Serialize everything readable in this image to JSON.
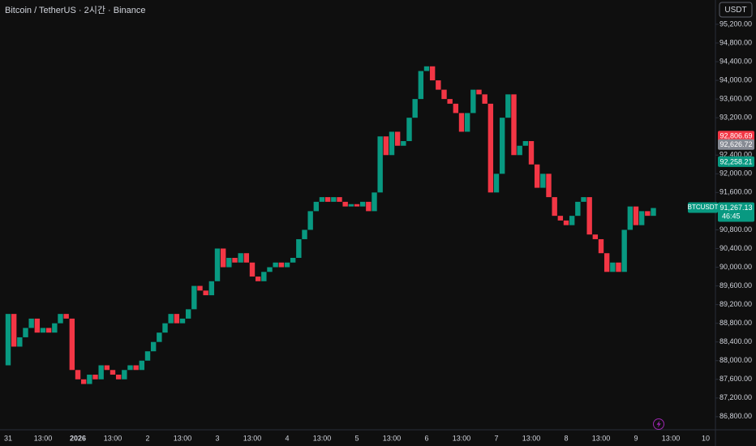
{
  "chart_data": {
    "type": "candlestick",
    "title": "Bitcoin / TetherUS · 2시간 · Binance",
    "currency_button": "USDT",
    "symbol": "BTCUSDT",
    "countdown": "46:45",
    "last_price_label": "91,267.13",
    "up_color": "#089981",
    "down_color": "#f23645",
    "grid": false,
    "categories": [
      "31",
      null,
      null,
      null,
      null,
      null,
      "13:00",
      null,
      null,
      null,
      null,
      null,
      "2026",
      null,
      null,
      null,
      null,
      null,
      "13:00",
      null,
      null,
      null,
      null,
      null,
      "2",
      null,
      null,
      null,
      null,
      null,
      "13:00",
      null,
      null,
      null,
      null,
      null,
      "3",
      null,
      null,
      null,
      null,
      null,
      "13:00",
      null,
      null,
      null,
      null,
      null,
      "4",
      null,
      null,
      null,
      null,
      null,
      "13:00",
      null,
      null,
      null,
      null,
      null,
      "5",
      null,
      null,
      null,
      null,
      null,
      "13:00",
      null,
      null,
      null,
      null,
      null,
      "6",
      null,
      null,
      null,
      null,
      null,
      "13:00",
      null,
      null,
      null,
      null,
      null,
      "7",
      null,
      null,
      null,
      null,
      null,
      "13:00",
      null,
      null,
      null,
      null,
      null,
      "8",
      null,
      null,
      null,
      null,
      null,
      "13:00",
      null,
      null,
      null,
      null,
      null,
      "9",
      null,
      null,
      null,
      null,
      null,
      "13:00",
      null,
      null,
      null,
      null,
      null,
      "10"
    ],
    "open": [
      87900,
      89000,
      88300,
      88500,
      88700,
      88900,
      88600,
      88700,
      88600,
      88800,
      89000,
      88900,
      87800,
      87600,
      87500,
      87700,
      87600,
      87900,
      87800,
      87700,
      87600,
      87800,
      87900,
      87800,
      88000,
      88200,
      88400,
      88600,
      88800,
      89000,
      88800,
      88900,
      89100,
      89600,
      89500,
      89400,
      89700,
      90400,
      90000,
      90200,
      90100,
      90300,
      90100,
      89800,
      89700,
      89900,
      90000,
      90100,
      90000,
      90100,
      90200,
      90600,
      90800,
      91200,
      91400,
      91500,
      91400,
      91500,
      91400,
      91300,
      91350,
      91300,
      91400,
      91200,
      91600,
      92800,
      92400,
      92900,
      92600,
      92700,
      93200,
      93600,
      94200,
      94300,
      94000,
      93800,
      93600,
      93500,
      93300,
      92900,
      93300,
      93800,
      93700,
      93500,
      91600,
      92000,
      93200,
      93700,
      92400,
      92600,
      92700,
      92200,
      91700,
      92000,
      91500,
      91100,
      91000,
      90900,
      91100,
      91400,
      91500,
      90700,
      90600,
      90300,
      89900,
      90100,
      89900,
      90800,
      91300,
      90900,
      91200,
      91100,
      null,
      null,
      null,
      null,
      null,
      null,
      null,
      null,
      null
    ],
    "close": [
      89000,
      88300,
      88500,
      88700,
      88900,
      88600,
      88700,
      88600,
      88800,
      89000,
      88900,
      87800,
      87600,
      87500,
      87700,
      87600,
      87900,
      87800,
      87700,
      87600,
      87800,
      87900,
      87800,
      88000,
      88200,
      88400,
      88600,
      88800,
      89000,
      88800,
      88900,
      89100,
      89600,
      89500,
      89400,
      89700,
      90400,
      90000,
      90200,
      90100,
      90300,
      90100,
      89800,
      89700,
      89900,
      90000,
      90100,
      90000,
      90100,
      90200,
      90600,
      90800,
      91200,
      91400,
      91500,
      91400,
      91500,
      91400,
      91300,
      91350,
      91300,
      91400,
      91200,
      91600,
      92800,
      92400,
      92900,
      92600,
      92700,
      93200,
      93600,
      94200,
      94300,
      94000,
      93800,
      93600,
      93500,
      93300,
      92900,
      93300,
      93800,
      93700,
      93500,
      91600,
      92000,
      93200,
      93700,
      92400,
      92600,
      92700,
      92200,
      91700,
      92000,
      91500,
      91100,
      91000,
      90900,
      91100,
      91400,
      91500,
      90700,
      90600,
      90300,
      89900,
      90100,
      89900,
      90800,
      91300,
      90900,
      91200,
      91100,
      91267.13,
      null,
      null,
      null,
      null,
      null,
      null,
      null,
      null,
      null
    ],
    "ylim": [
      86520,
      95720
    ],
    "yticks": [
      {
        "value": 86800,
        "label": "86,800.00"
      },
      {
        "value": 87200,
        "label": "87,200.00"
      },
      {
        "value": 87600,
        "label": "87,600.00"
      },
      {
        "value": 88000,
        "label": "88,000.00"
      },
      {
        "value": 88400,
        "label": "88,400.00"
      },
      {
        "value": 88800,
        "label": "88,800.00"
      },
      {
        "value": 89200,
        "label": "89,200.00"
      },
      {
        "value": 89600,
        "label": "89,600.00"
      },
      {
        "value": 90000,
        "label": "90,000.00"
      },
      {
        "value": 90400,
        "label": "90,400.00"
      },
      {
        "value": 90800,
        "label": "90,800.00"
      },
      {
        "value": 91600,
        "label": "91,600.00"
      },
      {
        "value": 92000,
        "label": "92,000.00"
      },
      {
        "value": 92400,
        "label": "92,400.00"
      },
      {
        "value": 93200,
        "label": "93,200.00"
      },
      {
        "value": 93600,
        "label": "93,600.00"
      },
      {
        "value": 94000,
        "label": "94,000.00"
      },
      {
        "value": 94400,
        "label": "94,400.00"
      },
      {
        "value": 94800,
        "label": "94,800.00"
      },
      {
        "value": 95200,
        "label": "95,200.00"
      }
    ],
    "price_lines": [
      {
        "value": 92806.69,
        "label": "92,806.69",
        "color": "#f23645"
      },
      {
        "value": 92626.72,
        "label": "92,626.72",
        "color": "#878b94"
      },
      {
        "value": 92258.21,
        "label": "92,258.21",
        "color": "#089981"
      }
    ]
  }
}
